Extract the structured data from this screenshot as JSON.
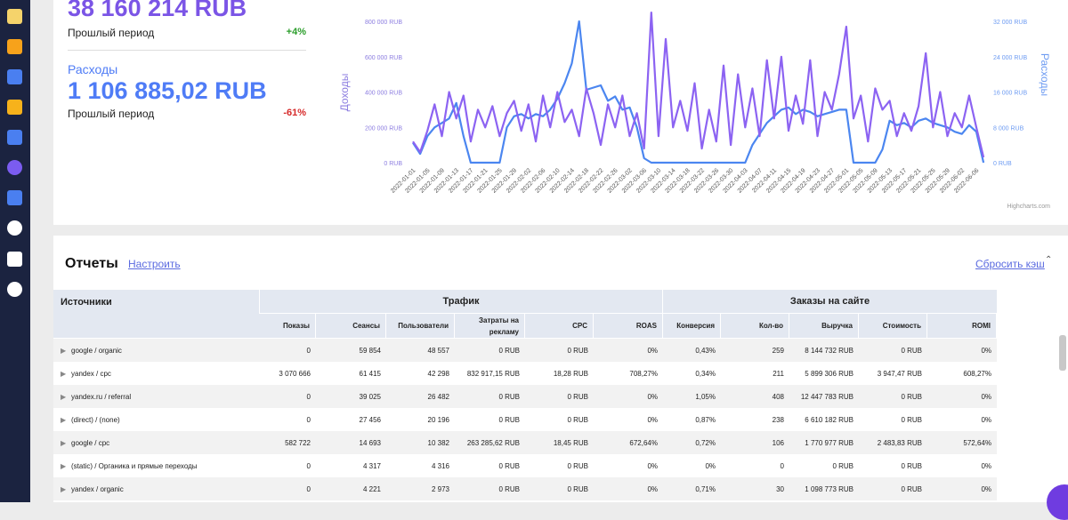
{
  "summary": {
    "revenue_value": "38 160 214 RUB",
    "revenue_prev_label": "Прошлый период",
    "revenue_change": "+4%",
    "expenses_label": "Расходы",
    "expenses_value": "1 106 885,02 RUB",
    "expenses_prev_label": "Прошлый период",
    "expenses_change": "-61%"
  },
  "chart_data": {
    "type": "line",
    "y_label": "Доходы",
    "y2_label": "Расходы",
    "credits": "Highcharts.com",
    "categories": [
      "2022-01-01",
      null,
      "2022-01-05",
      null,
      "2022-01-09",
      null,
      "2022-01-13",
      null,
      "2022-01-17",
      null,
      "2022-01-21",
      null,
      "2022-01-25",
      null,
      "2022-01-29",
      null,
      "2022-02-02",
      null,
      "2022-02-06",
      null,
      "2022-02-10",
      null,
      "2022-02-14",
      null,
      "2022-02-18",
      null,
      "2022-02-22",
      null,
      "2022-02-26",
      null,
      "2022-03-02",
      null,
      "2022-03-06",
      null,
      "2022-03-10",
      null,
      "2022-03-14",
      null,
      "2022-03-18",
      null,
      "2022-03-22",
      null,
      "2022-03-26",
      null,
      "2022-03-30",
      null,
      "2022-04-03",
      null,
      "2022-04-07",
      null,
      "2022-04-11",
      null,
      "2022-04-15",
      null,
      "2022-04-19",
      null,
      "2022-04-23",
      null,
      "2022-04-27",
      null,
      "2022-05-01",
      null,
      "2022-05-05",
      null,
      "2022-05-09",
      null,
      "2022-05-13",
      null,
      "2022-05-17",
      null,
      "2022-05-21",
      null,
      "2022-05-25",
      null,
      "2022-05-29",
      null,
      "2022-06-02",
      null,
      "2022-06-06",
      null
    ],
    "series": [
      {
        "name": "Доходы",
        "color": "#8c63f2",
        "axis": "y",
        "values": [
          120000,
          60000,
          180000,
          330000,
          150000,
          400000,
          250000,
          380000,
          120000,
          300000,
          200000,
          320000,
          150000,
          280000,
          350000,
          180000,
          330000,
          120000,
          380000,
          200000,
          400000,
          230000,
          300000,
          150000,
          420000,
          280000,
          100000,
          330000,
          200000,
          380000,
          150000,
          280000,
          80000,
          850000,
          150000,
          700000,
          200000,
          350000,
          180000,
          450000,
          80000,
          300000,
          120000,
          550000,
          100000,
          500000,
          200000,
          420000,
          150000,
          580000,
          250000,
          600000,
          180000,
          380000,
          220000,
          580000,
          150000,
          400000,
          300000,
          500000,
          770000,
          250000,
          380000,
          120000,
          420000,
          300000,
          350000,
          150000,
          280000,
          180000,
          320000,
          620000,
          200000,
          400000,
          150000,
          280000,
          200000,
          380000,
          200000,
          30000
        ]
      },
      {
        "name": "Расходы",
        "color": "#4b86f0",
        "axis": "y2",
        "values": [
          4500,
          2000,
          6000,
          8000,
          9000,
          10000,
          13500,
          6000,
          0,
          0,
          0,
          0,
          0,
          8000,
          10500,
          11000,
          10000,
          11000,
          10500,
          12000,
          14500,
          18000,
          22500,
          32000,
          16500,
          17000,
          17500,
          14000,
          15000,
          12000,
          12500,
          8000,
          1000,
          0,
          0,
          0,
          0,
          0,
          0,
          0,
          0,
          0,
          0,
          0,
          0,
          0,
          0,
          4000,
          6500,
          9000,
          10500,
          12000,
          12500,
          11000,
          12000,
          11500,
          10500,
          11000,
          11500,
          12000,
          12000,
          0,
          0,
          0,
          0,
          3000,
          9500,
          8500,
          9000,
          8000,
          9500,
          10000,
          9000,
          8500,
          8000,
          7000,
          6500,
          8500,
          7000,
          0
        ]
      }
    ],
    "ylim": [
      0,
      800000
    ],
    "yticks": [
      {
        "value": 0,
        "label": "0 RUB"
      },
      {
        "value": 200000,
        "label": "200 000 RUB"
      },
      {
        "value": 400000,
        "label": "400 000 RUB"
      },
      {
        "value": 600000,
        "label": "600 000 RUB"
      },
      {
        "value": 800000,
        "label": "800 000 RUB"
      }
    ],
    "y2lim": [
      0,
      32000
    ],
    "y2ticks": [
      {
        "value": 0,
        "label": "0 RUB"
      },
      {
        "value": 8000,
        "label": "8 000 RUB"
      },
      {
        "value": 16000,
        "label": "16 000 RUB"
      },
      {
        "value": 24000,
        "label": "24 000 RUB"
      },
      {
        "value": 32000,
        "label": "32 000 RUB"
      }
    ],
    "grid": false
  },
  "reports": {
    "title": "Отчеты",
    "configure": "Настроить",
    "reset": "Сбросить кэш",
    "groups": [
      "Источники",
      "Трафик",
      "Заказы на сайте"
    ],
    "columns": [
      "Показы",
      "Сеансы",
      "Пользователи",
      "Затраты на рекламу",
      "CPC",
      "ROAS",
      "Конверсия",
      "Кол-во",
      "Выручка",
      "Стоимость",
      "ROMI"
    ],
    "rows": [
      [
        "google / organic",
        "0",
        "59 854",
        "48 557",
        "0 RUB",
        "0 RUB",
        "0%",
        "0,43%",
        "259",
        "8 144 732 RUB",
        "0 RUB",
        "0%"
      ],
      [
        "yandex / cpc",
        "3 070 666",
        "61 415",
        "42 298",
        "832 917,15 RUB",
        "18,28 RUB",
        "708,27%",
        "0,34%",
        "211",
        "5 899 306 RUB",
        "3 947,47 RUB",
        "608,27%"
      ],
      [
        "yandex.ru / referral",
        "0",
        "39 025",
        "26 482",
        "0 RUB",
        "0 RUB",
        "0%",
        "1,05%",
        "408",
        "12 447 783 RUB",
        "0 RUB",
        "0%"
      ],
      [
        "(direct) / (none)",
        "0",
        "27 456",
        "20 196",
        "0 RUB",
        "0 RUB",
        "0%",
        "0,87%",
        "238",
        "6 610 182 RUB",
        "0 RUB",
        "0%"
      ],
      [
        "google / cpc",
        "582 722",
        "14 693",
        "10 382",
        "263 285,62 RUB",
        "18,45 RUB",
        "672,64%",
        "0,72%",
        "106",
        "1 770 977 RUB",
        "2 483,83 RUB",
        "572,64%"
      ],
      [
        "(static) / Органика и прямые переходы",
        "0",
        "4 317",
        "4 316",
        "0 RUB",
        "0 RUB",
        "0%",
        "0%",
        "0",
        "0 RUB",
        "0 RUB",
        "0%"
      ],
      [
        "yandex / organic",
        "0",
        "4 221",
        "2 973",
        "0 RUB",
        "0 RUB",
        "0%",
        "0,71%",
        "30",
        "1 098 773 RUB",
        "0 RUB",
        "0%"
      ]
    ]
  }
}
